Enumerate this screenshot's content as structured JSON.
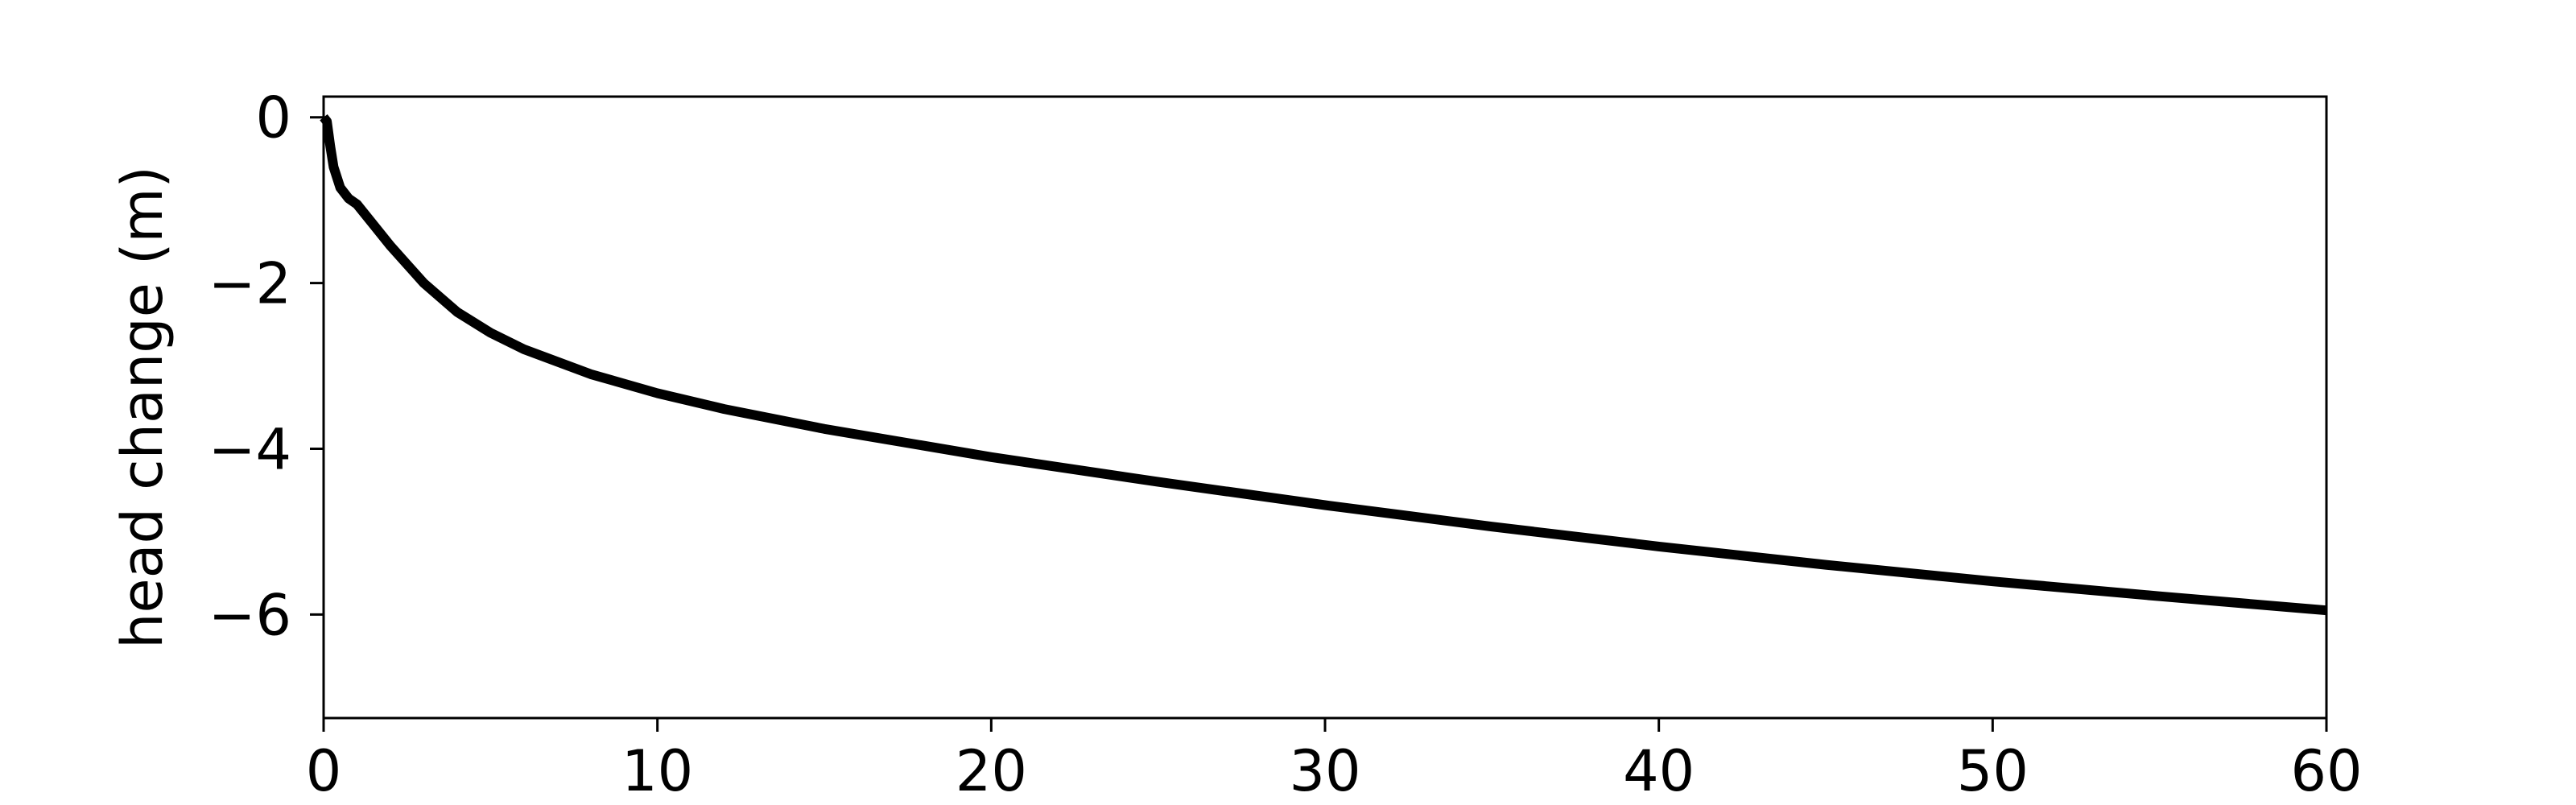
{
  "chart_data": {
    "type": "line",
    "title": "",
    "xlabel": "",
    "ylabel": "head change (m)",
    "xlim": [
      0,
      60
    ],
    "ylim": [
      -7.25,
      0.25
    ],
    "xticks": [
      0,
      10,
      20,
      30,
      40,
      50,
      60
    ],
    "yticks": [
      0,
      -2,
      -4,
      -6
    ],
    "xtick_labels": [
      "0",
      "10",
      "20",
      "30",
      "40",
      "50",
      "60"
    ],
    "ytick_labels": [
      "0",
      "−2",
      "−4",
      "−6"
    ],
    "grid": false,
    "legend": "none",
    "series": [
      {
        "color": "#000000",
        "x": [
          0,
          0.1,
          0.2,
          0.3,
          0.5,
          0.75,
          1,
          1.5,
          2,
          3,
          4,
          5,
          6,
          8,
          10,
          12,
          15,
          20,
          25,
          30,
          35,
          40,
          45,
          50,
          55,
          60
        ],
        "y": [
          0,
          -0.05,
          -0.35,
          -0.6,
          -0.85,
          -0.98,
          -1.05,
          -1.3,
          -1.55,
          -2.0,
          -2.35,
          -2.6,
          -2.8,
          -3.1,
          -3.33,
          -3.52,
          -3.76,
          -4.1,
          -4.4,
          -4.68,
          -4.94,
          -5.18,
          -5.4,
          -5.6,
          -5.78,
          -5.95
        ]
      }
    ]
  }
}
